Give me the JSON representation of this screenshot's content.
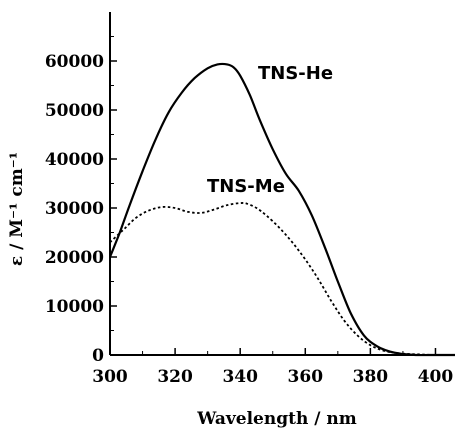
{
  "chart_data": {
    "type": "line",
    "title": "",
    "xlabel": "Wavelength / nm",
    "ylabel": "ε / M⁻¹ cm⁻¹",
    "xlim": [
      300,
      406
    ],
    "ylim": [
      0,
      70000
    ],
    "xticks": [
      300,
      320,
      340,
      360,
      380,
      400
    ],
    "yticks": [
      0,
      10000,
      20000,
      30000,
      40000,
      50000,
      60000
    ],
    "grid": false,
    "legend": "none",
    "series": [
      {
        "name": "TNS-He",
        "style": "solid",
        "color": "#000000",
        "x": [
          300,
          303,
          306,
          310,
          314,
          318,
          322,
          326,
          330,
          333,
          336,
          338,
          340,
          343,
          346,
          350,
          354,
          358,
          362,
          366,
          370,
          374,
          378,
          382,
          386,
          390,
          394,
          398,
          402,
          406
        ],
        "y": [
          20000,
          25000,
          30500,
          37500,
          44000,
          49500,
          53500,
          56500,
          58500,
          59300,
          59300,
          58700,
          57000,
          53000,
          48000,
          42000,
          37000,
          33500,
          28500,
          22000,
          15000,
          8500,
          4000,
          1800,
          700,
          200,
          0,
          0,
          0,
          0
        ]
      },
      {
        "name": "TNS-Me",
        "style": "dotted",
        "color": "#000000",
        "x": [
          300,
          304,
          308,
          312,
          316,
          320,
          324,
          328,
          332,
          336,
          340,
          342,
          345,
          348,
          352,
          356,
          360,
          364,
          368,
          372,
          376,
          380,
          384,
          388,
          392,
          396,
          400,
          406
        ],
        "y": [
          23000,
          25500,
          28000,
          29500,
          30200,
          30000,
          29200,
          29000,
          29700,
          30600,
          31000,
          30900,
          30000,
          28500,
          26000,
          23000,
          19500,
          15500,
          11000,
          7000,
          4000,
          2000,
          900,
          400,
          200,
          100,
          0,
          0
        ]
      }
    ]
  }
}
